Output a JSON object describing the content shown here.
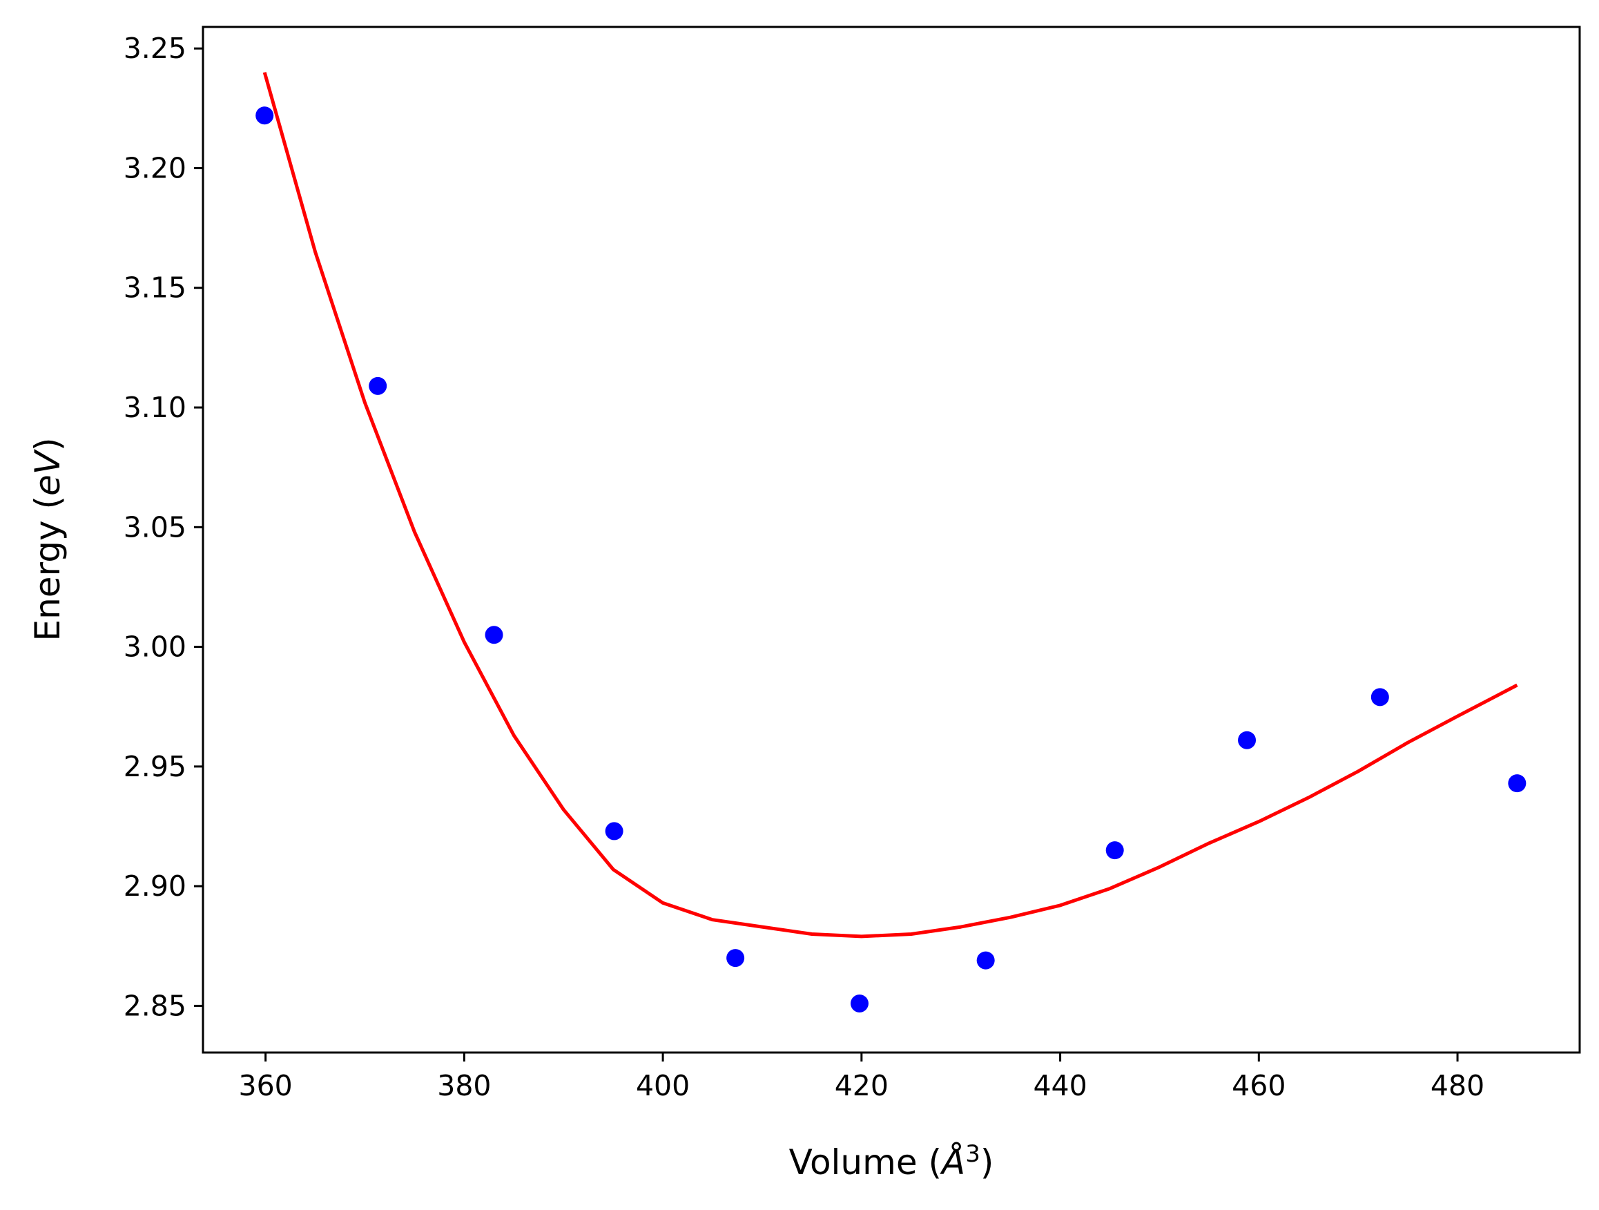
{
  "chart_data": {
    "type": "scatter",
    "title": "",
    "xlabel": {
      "prefix": "Volume (",
      "symbol": "Å",
      "superscript": "3",
      "suffix": ")"
    },
    "ylabel": {
      "prefix": "Energy (",
      "unit": "eV",
      "suffix": ")"
    },
    "xlim": [
      353.7,
      492.3
    ],
    "ylim": [
      2.8305,
      3.259
    ],
    "xticks": [
      360,
      380,
      400,
      420,
      440,
      460,
      480
    ],
    "xtick_labels": [
      "360",
      "380",
      "400",
      "420",
      "440",
      "460",
      "480"
    ],
    "yticks": [
      2.85,
      2.9,
      2.95,
      3.0,
      3.05,
      3.1,
      3.15,
      3.2,
      3.25
    ],
    "ytick_labels": [
      "2.85",
      "2.90",
      "2.95",
      "3.00",
      "3.05",
      "3.10",
      "3.15",
      "3.20",
      "3.25"
    ],
    "grid": false,
    "legend": false,
    "series": [
      {
        "kind": "points",
        "color": "#0000ff",
        "x": [
          359.9,
          371.3,
          383.0,
          395.1,
          407.3,
          419.8,
          432.5,
          445.5,
          458.8,
          472.2,
          486.0
        ],
        "y": [
          3.222,
          3.109,
          3.005,
          2.923,
          2.87,
          2.851,
          2.869,
          2.915,
          2.961,
          2.979,
          2.943
        ]
      },
      {
        "kind": "fit-line",
        "color": "#ff0000",
        "x": [
          359.9,
          365,
          370,
          375,
          380,
          385,
          390,
          395,
          400,
          405,
          410,
          415,
          420,
          425,
          430,
          435,
          440,
          445,
          450,
          455,
          460,
          465,
          470,
          475,
          480,
          486.0
        ],
        "y": [
          3.24,
          3.165,
          3.102,
          3.048,
          3.002,
          2.963,
          2.932,
          2.907,
          2.893,
          2.886,
          2.883,
          2.88,
          2.879,
          2.88,
          2.883,
          2.887,
          2.892,
          2.899,
          2.908,
          2.918,
          2.927,
          2.937,
          2.948,
          2.96,
          2.971,
          2.984
        ]
      }
    ]
  }
}
